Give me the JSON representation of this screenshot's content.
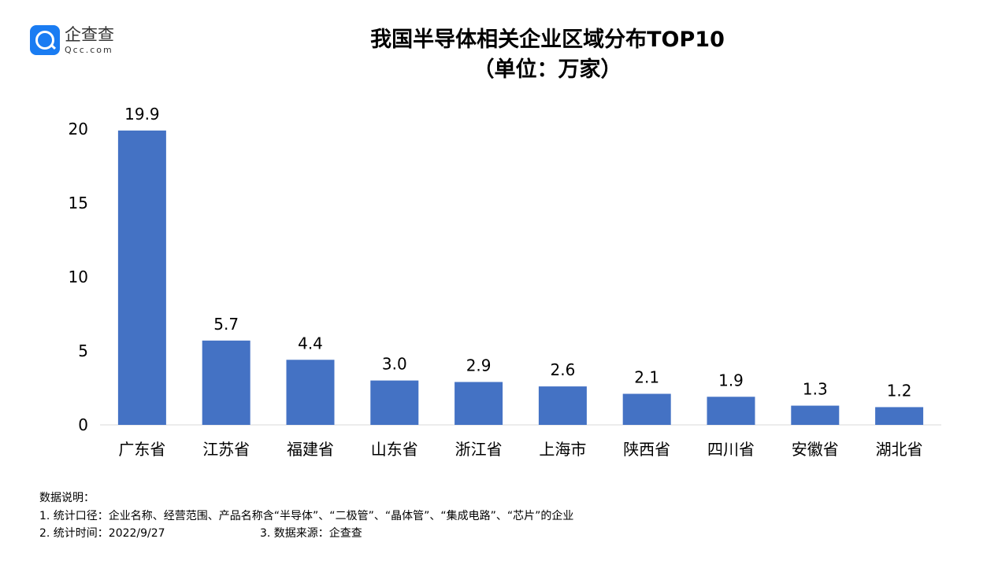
{
  "logo": {
    "cn": "企查查",
    "en": "Qcc.com"
  },
  "chart_data": {
    "type": "bar",
    "title": "我国半导体相关企业区域分布TOP10",
    "subtitle": "（单位：万家）",
    "categories": [
      "广东省",
      "江苏省",
      "福建省",
      "山东省",
      "浙江省",
      "上海市",
      "陕西省",
      "四川省",
      "安徽省",
      "湖北省"
    ],
    "values": [
      19.9,
      5.7,
      4.4,
      3.0,
      2.9,
      2.6,
      2.1,
      1.9,
      1.3,
      1.2
    ],
    "data_labels": [
      "19.9",
      "5.7",
      "4.4",
      "3.0",
      "2.9",
      "2.6",
      "2.1",
      "1.9",
      "1.3",
      "1.2"
    ],
    "ylim": [
      0,
      20
    ],
    "yticks": [
      0,
      5,
      10,
      15,
      20
    ],
    "grid": false,
    "bar_color": "#4472c4",
    "xlabel": "",
    "ylabel": ""
  },
  "notes": {
    "heading": "数据说明：",
    "line1": "1. 统计口径：企业名称、经营范围、产品名称含“半导体”、“二极管”、“晶体管”、“集成电路”、“芯片”的企业",
    "line2": "2. 统计时间：2022/9/27",
    "line3": "3. 数据来源：企查查"
  }
}
